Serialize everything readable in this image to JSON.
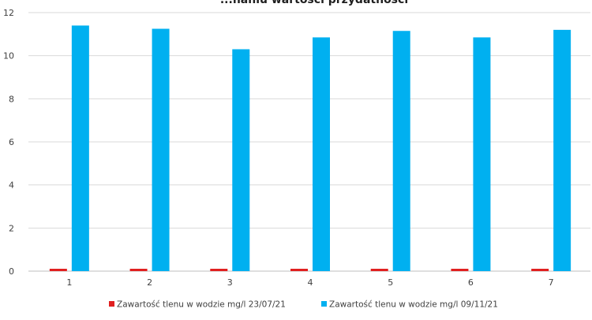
{
  "chart_data": {
    "type": "bar",
    "title": "...naniu wartości przydatności",
    "xlabel": "",
    "ylabel": "",
    "categories": [
      "1",
      "2",
      "3",
      "4",
      "5",
      "6",
      "7"
    ],
    "ylim": [
      0,
      12
    ],
    "yticks": [
      0,
      2,
      4,
      6,
      8,
      10,
      12
    ],
    "grid": true,
    "legend_position": "bottom",
    "series": [
      {
        "name": "Zawartość tlenu w wodzie mg/l 23/07/21",
        "color": "#e02020",
        "values": [
          0.1,
          0.1,
          0.05,
          0.1,
          0.1,
          0.05,
          0.05
        ]
      },
      {
        "name": "Zawartość tlenu w wodzie mg/l 09/11/21",
        "color": "#00b0f0",
        "values": [
          11.4,
          11.25,
          10.3,
          10.85,
          11.15,
          10.85,
          11.2
        ]
      }
    ]
  }
}
